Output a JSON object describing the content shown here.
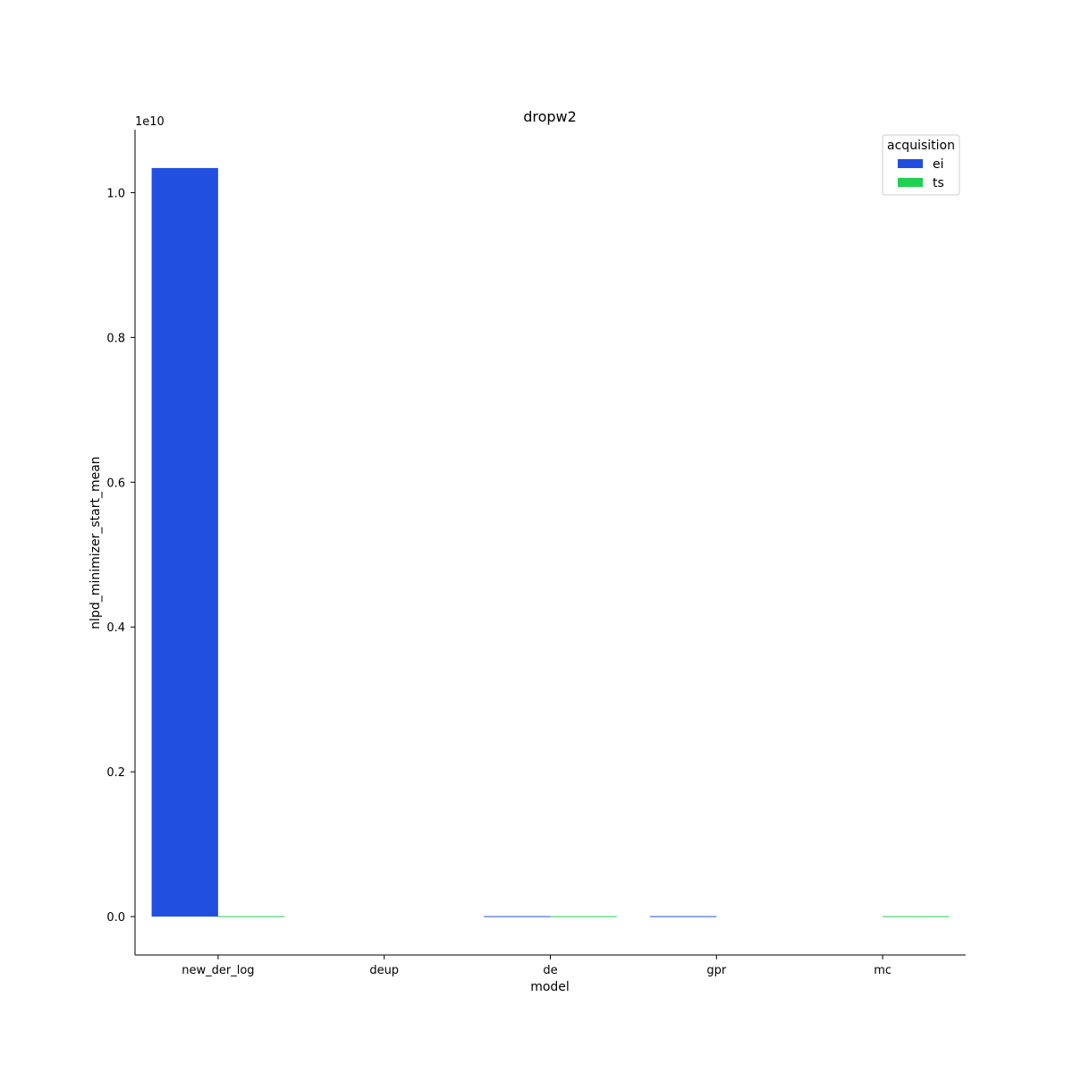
{
  "chart_data": {
    "type": "bar",
    "title": "dropw2",
    "xlabel": "model",
    "ylabel": "nlpd_minimizer_start_mean",
    "y_offset_label": "1e10",
    "y_scale_factor": 10000000000,
    "categories": [
      "new_der_log",
      "deup",
      "de",
      "gpr",
      "mc"
    ],
    "series": [
      {
        "name": "ei",
        "color": "#2150e0",
        "values": [
          10340000000,
          null,
          3000000,
          2000000,
          null
        ]
      },
      {
        "name": "ts",
        "color": "#1fd150",
        "values": [
          10000000,
          null,
          5000000,
          null,
          2000000
        ]
      }
    ],
    "ylim": [
      -530000000,
      10870000000
    ],
    "yticks": [
      0.0,
      0.2,
      0.4,
      0.6,
      0.8,
      1.0
    ],
    "ytick_labels": [
      "0.0",
      "0.2",
      "0.4",
      "0.6",
      "0.8",
      "1.0"
    ],
    "legend": {
      "title": "acquisition",
      "position": "top-right"
    },
    "grid": false
  }
}
